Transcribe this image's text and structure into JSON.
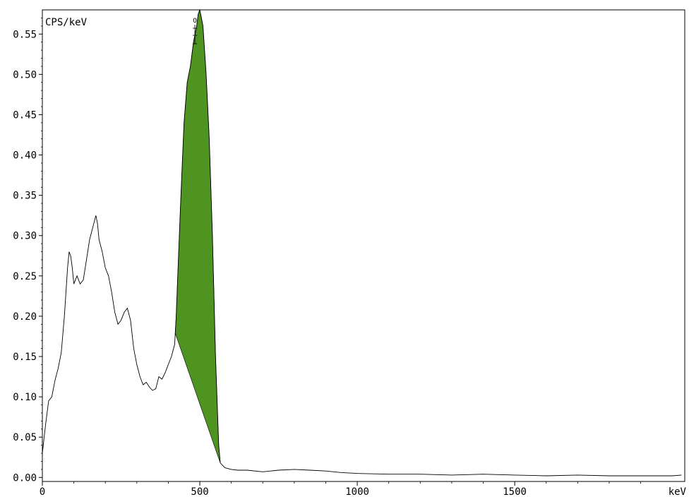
{
  "chart_data": {
    "type": "line",
    "ylabel": "CPS/keV",
    "xlabel": "keV",
    "xlim": [
      0,
      2040
    ],
    "ylim": [
      -0.005,
      0.58
    ],
    "x_ticks": [
      0,
      500,
      1000,
      1500
    ],
    "y_ticks": [
      0.0,
      0.05,
      0.1,
      0.15,
      0.2,
      0.25,
      0.3,
      0.35,
      0.4,
      0.45,
      0.5,
      0.55
    ],
    "y_tick_labels": [
      "0.00",
      "0.05",
      "0.10",
      "0.15",
      "0.20",
      "0.25",
      "0.30",
      "0.35",
      "0.40",
      "0.45",
      "0.50",
      "0.55"
    ],
    "grid": false,
    "colors": {
      "line": "#000000",
      "peak_fill": "#4f9321",
      "background": "#ffffff"
    },
    "peak": {
      "label": "O",
      "energy": 500,
      "start": 422,
      "end": 565,
      "height": 0.58
    },
    "series": [
      {
        "x": [
          0,
          10,
          20,
          30,
          40,
          50,
          60,
          70,
          80,
          85,
          90,
          95,
          100,
          110,
          120,
          130,
          140,
          150,
          160,
          170,
          175,
          180,
          190,
          200,
          210,
          220,
          230,
          240,
          250,
          260,
          270,
          280,
          290,
          300,
          310,
          320,
          330,
          340,
          350,
          360,
          370,
          380,
          390,
          400,
          410,
          420,
          425,
          430,
          440,
          450,
          460,
          470,
          480,
          490,
          495,
          500,
          505,
          510,
          520,
          530,
          540,
          550,
          560,
          565,
          580,
          600,
          620,
          650,
          700,
          750,
          800,
          850,
          900,
          950,
          1000,
          1100,
          1200,
          1300,
          1400,
          1500,
          1600,
          1700,
          1800,
          1900,
          2000,
          2030
        ],
        "y": [
          0.03,
          0.065,
          0.095,
          0.1,
          0.12,
          0.135,
          0.155,
          0.2,
          0.26,
          0.28,
          0.275,
          0.26,
          0.24,
          0.25,
          0.24,
          0.245,
          0.27,
          0.295,
          0.31,
          0.325,
          0.315,
          0.295,
          0.28,
          0.26,
          0.25,
          0.23,
          0.205,
          0.19,
          0.195,
          0.205,
          0.21,
          0.195,
          0.16,
          0.14,
          0.125,
          0.115,
          0.118,
          0.112,
          0.108,
          0.11,
          0.125,
          0.122,
          0.13,
          0.14,
          0.15,
          0.165,
          0.2,
          0.25,
          0.35,
          0.44,
          0.49,
          0.51,
          0.54,
          0.56,
          0.575,
          0.58,
          0.57,
          0.56,
          0.5,
          0.42,
          0.3,
          0.15,
          0.04,
          0.018,
          0.012,
          0.01,
          0.009,
          0.009,
          0.007,
          0.009,
          0.01,
          0.009,
          0.008,
          0.006,
          0.005,
          0.004,
          0.004,
          0.003,
          0.004,
          0.003,
          0.002,
          0.003,
          0.002,
          0.002,
          0.002,
          0.003
        ]
      }
    ]
  }
}
